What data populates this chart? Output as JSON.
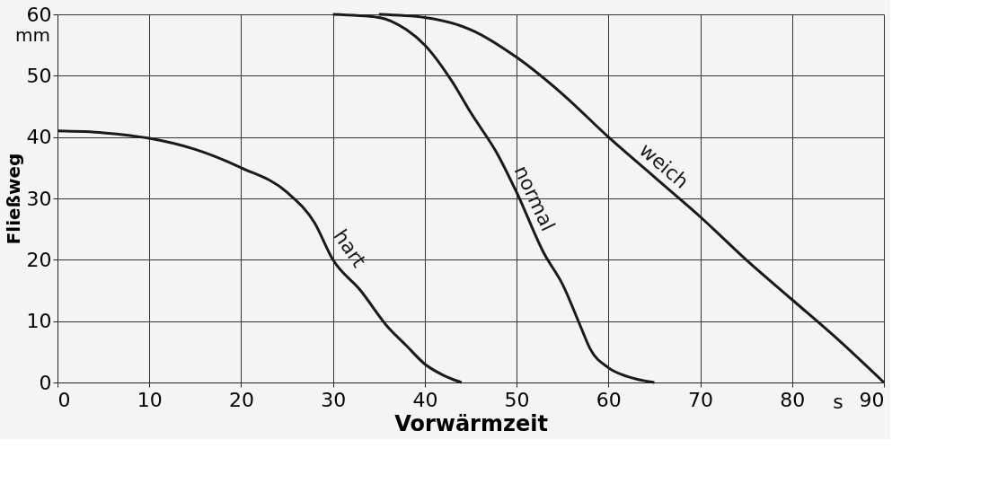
{
  "chart_data": {
    "type": "line",
    "xlabel": "Vorwärmzeit",
    "ylabel": "Fließweg",
    "x": [
      0,
      5,
      10,
      15,
      20,
      25,
      28,
      30,
      33,
      36,
      38,
      40,
      42,
      44
    ],
    "series": [
      {
        "name": "hart",
        "color": "#1a1a1a",
        "values": [
          41,
          40.7,
          39.8,
          38,
          35,
          31,
          26,
          20,
          15,
          9,
          6,
          3,
          1.2,
          0
        ]
      },
      {
        "name": "normal",
        "color": "#1a1a1a",
        "x": [
          30,
          35,
          38,
          40,
          43,
          45,
          48,
          50,
          53,
          55,
          57,
          58,
          60,
          62,
          65
        ],
        "values": [
          60,
          59.5,
          57.5,
          55,
          49,
          44,
          37,
          31,
          21,
          16,
          9,
          5.5,
          2.4,
          1,
          0
        ]
      },
      {
        "name": "weich",
        "color": "#1a1a1a",
        "x": [
          35,
          40,
          45,
          50,
          55,
          60,
          65,
          70,
          75,
          80,
          85,
          90
        ],
        "values": [
          60,
          59.5,
          57.5,
          53,
          47,
          40,
          33.5,
          27,
          20,
          13.5,
          7,
          0
        ]
      }
    ],
    "xlim": [
      0,
      90
    ],
    "xticks": [
      0,
      10,
      20,
      30,
      40,
      50,
      60,
      70,
      80,
      90
    ],
    "ylim": [
      0,
      60
    ],
    "yticks": [
      0,
      10,
      20,
      30,
      40,
      50,
      60
    ],
    "annotations": [
      "s",
      "mm"
    ],
    "grid": true,
    "legend": false,
    "marker": "none",
    "line_style": "solid"
  }
}
